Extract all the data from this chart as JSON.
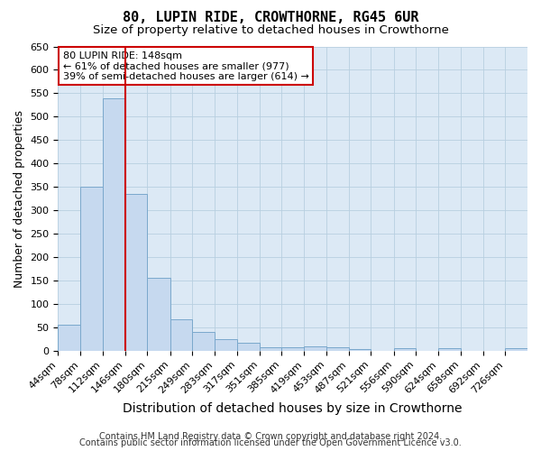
{
  "title": "80, LUPIN RIDE, CROWTHORNE, RG45 6UR",
  "subtitle": "Size of property relative to detached houses in Crowthorne",
  "xlabel": "Distribution of detached houses by size in Crowthorne",
  "ylabel": "Number of detached properties",
  "footer_line1": "Contains HM Land Registry data © Crown copyright and database right 2024.",
  "footer_line2": "Contains public sector information licensed under the Open Government Licence v3.0.",
  "bar_left_edges": [
    44,
    78,
    112,
    146,
    180,
    215,
    249,
    283,
    317,
    351,
    385,
    419,
    453,
    487,
    521,
    556,
    590,
    624,
    658,
    692,
    726
  ],
  "bar_widths": [
    34,
    34,
    34,
    34,
    35,
    34,
    34,
    34,
    34,
    34,
    34,
    34,
    34,
    34,
    35,
    34,
    34,
    34,
    34,
    34,
    34
  ],
  "bar_heights": [
    55,
    350,
    540,
    335,
    155,
    68,
    40,
    25,
    18,
    8,
    8,
    9,
    8,
    4,
    0,
    5,
    0,
    5,
    0,
    0,
    5
  ],
  "bar_color": "#c6d9ef",
  "bar_edge_color": "#7aa8cc",
  "property_line_x": 146,
  "property_line_color": "#cc0000",
  "annotation_text": "80 LUPIN RIDE: 148sqm\n← 61% of detached houses are smaller (977)\n39% of semi-detached houses are larger (614) →",
  "annotation_box_color": "#cc0000",
  "annotation_text_color": "#000000",
  "ylim": [
    0,
    650
  ],
  "yticks": [
    0,
    50,
    100,
    150,
    200,
    250,
    300,
    350,
    400,
    450,
    500,
    550,
    600,
    650
  ],
  "xlim_left": 44,
  "xlim_right": 760,
  "background_color": "#ffffff",
  "plot_bg_color": "#dce9f5",
  "grid_color": "#b8cfe0",
  "title_fontsize": 11,
  "subtitle_fontsize": 9.5,
  "xlabel_fontsize": 10,
  "ylabel_fontsize": 9,
  "tick_fontsize": 8,
  "annotation_fontsize": 8,
  "footer_fontsize": 7
}
